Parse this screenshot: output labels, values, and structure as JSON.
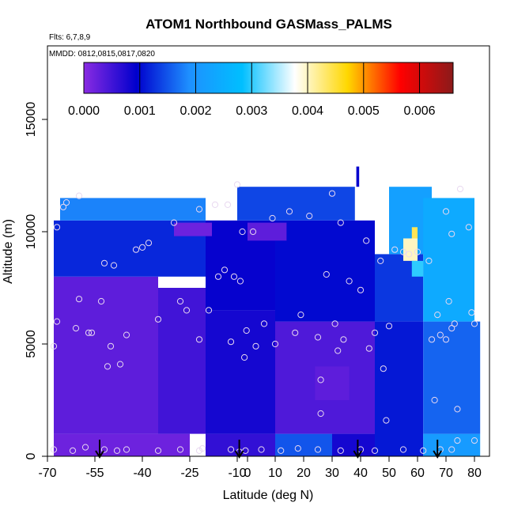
{
  "chart_data": {
    "type": "heatmap",
    "title": "ATOM1 Northbound GASMass_PALMS",
    "flights_label": "Flts: 6,7,8,9",
    "dates_label": "MMDD: 0812,0815,0817,0820",
    "xlabel": "Latitude (deg N)",
    "ylabel": "Altitude (m)",
    "xlim": [
      -70,
      82
    ],
    "ylim": [
      0,
      15000
    ],
    "x_ticks": [
      "-70",
      "-55",
      "-40",
      "-25",
      "-10",
      "0",
      "10",
      "20",
      "30",
      "40",
      "50",
      "60",
      "70",
      "80"
    ],
    "y_ticks": [
      "0",
      "5000",
      "10000",
      "15000"
    ],
    "colorbar": {
      "min": 0,
      "max": 0.0066,
      "ticks": [
        "0.000",
        "0.001",
        "0.002",
        "0.003",
        "0.004",
        "0.005",
        "0.006"
      ],
      "colors": [
        "#8a2be2",
        "#0000cd",
        "#1e90ff",
        "#00bfff",
        "#ffffff",
        "#ffd700",
        "#ff0000",
        "#8b1a1a"
      ]
    },
    "grid": false,
    "legend": "colorbar-top-inside",
    "arrows_lat": [
      -53.5,
      -8,
      39,
      67
    ],
    "field": [
      {
        "lat": [
          -68,
          -25
        ],
        "alt": [
          0,
          1000
        ],
        "value": 0.0002
      },
      {
        "lat": [
          -68,
          -35
        ],
        "alt": [
          1000,
          8000
        ],
        "value": 0.0003
      },
      {
        "lat": [
          -35,
          -20
        ],
        "alt": [
          1000,
          7500
        ],
        "value": 0.0005
      },
      {
        "lat": [
          -68,
          -20
        ],
        "alt": [
          8000,
          10500
        ],
        "value": 0.0012
      },
      {
        "lat": [
          -66,
          -20
        ],
        "alt": [
          10500,
          11500
        ],
        "value": 0.0018
      },
      {
        "lat": [
          -20,
          10
        ],
        "alt": [
          0,
          1000
        ],
        "value": 0.0006
      },
      {
        "lat": [
          -20,
          10
        ],
        "alt": [
          1000,
          6500
        ],
        "value": 0.0008
      },
      {
        "lat": [
          -20,
          10
        ],
        "alt": [
          6500,
          10500
        ],
        "value": 0.0009
      },
      {
        "lat": [
          -10,
          38
        ],
        "alt": [
          10500,
          12000
        ],
        "value": 0.0014
      },
      {
        "lat": [
          10,
          30
        ],
        "alt": [
          0,
          1000
        ],
        "value": 0.0015
      },
      {
        "lat": [
          10,
          45
        ],
        "alt": [
          1000,
          6000
        ],
        "value": 0.0004
      },
      {
        "lat": [
          10,
          45
        ],
        "alt": [
          6000,
          10500
        ],
        "value": 0.001
      },
      {
        "lat": [
          30,
          50
        ],
        "alt": [
          0,
          1000
        ],
        "value": 0.0008
      },
      {
        "lat": [
          45,
          62
        ],
        "alt": [
          0,
          6000
        ],
        "value": 0.0011
      },
      {
        "lat": [
          45,
          62
        ],
        "alt": [
          6000,
          9000
        ],
        "value": 0.0013
      },
      {
        "lat": [
          50,
          65
        ],
        "alt": [
          9000,
          12000
        ],
        "value": 0.0022
      },
      {
        "lat": [
          62,
          82
        ],
        "alt": [
          0,
          1000
        ],
        "value": 0.0021
      },
      {
        "lat": [
          62,
          82
        ],
        "alt": [
          1000,
          6000
        ],
        "value": 0.0016
      },
      {
        "lat": [
          62,
          80
        ],
        "alt": [
          6000,
          11500
        ],
        "value": 0.0024
      },
      {
        "lat": [
          -30,
          -18
        ],
        "alt": [
          9800,
          10400
        ],
        "value": 0.0002
      },
      {
        "lat": [
          0,
          14
        ],
        "alt": [
          9600,
          10400
        ],
        "value": 0.0003
      },
      {
        "lat": [
          24,
          36
        ],
        "alt": [
          2500,
          4000
        ],
        "value": 0.0003
      },
      {
        "lat": [
          55,
          60
        ],
        "alt": [
          8700,
          9700
        ],
        "value": 0.004
      },
      {
        "lat": [
          58,
          60
        ],
        "alt": [
          9700,
          10200
        ],
        "value": 0.0044
      },
      {
        "lat": [
          58,
          62
        ],
        "alt": [
          8000,
          8700
        ],
        "value": 0.003
      },
      {
        "lat": [
          38.5,
          39.5
        ],
        "alt": [
          12000,
          12900
        ],
        "value": 0.0009
      }
    ],
    "points": [
      {
        "lat": -67,
        "alt": 10200
      },
      {
        "lat": -65,
        "alt": 11100
      },
      {
        "lat": -64,
        "alt": 11300
      },
      {
        "lat": -60,
        "alt": 11600
      },
      {
        "lat": -67,
        "alt": 6000
      },
      {
        "lat": -68,
        "alt": 4900
      },
      {
        "lat": -60,
        "alt": 7000
      },
      {
        "lat": -61,
        "alt": 5700
      },
      {
        "lat": -57,
        "alt": 5500
      },
      {
        "lat": -56,
        "alt": 5500
      },
      {
        "lat": -53,
        "alt": 6900
      },
      {
        "lat": -52,
        "alt": 8600
      },
      {
        "lat": -49,
        "alt": 8500
      },
      {
        "lat": -51,
        "alt": 4000
      },
      {
        "lat": -50,
        "alt": 4900
      },
      {
        "lat": -47,
        "alt": 4100
      },
      {
        "lat": -45,
        "alt": 5400
      },
      {
        "lat": -42,
        "alt": 9200
      },
      {
        "lat": -40,
        "alt": 9300
      },
      {
        "lat": -38,
        "alt": 9500
      },
      {
        "lat": -35,
        "alt": 6100
      },
      {
        "lat": -30,
        "alt": 10400
      },
      {
        "lat": -28,
        "alt": 6900
      },
      {
        "lat": -26,
        "alt": 6500
      },
      {
        "lat": -22,
        "alt": 11000
      },
      {
        "lat": -22,
        "alt": 5200
      },
      {
        "lat": -19,
        "alt": 6500
      },
      {
        "lat": -17,
        "alt": 11200
      },
      {
        "lat": -16,
        "alt": 8000
      },
      {
        "lat": -14,
        "alt": 8300
      },
      {
        "lat": -13,
        "alt": 11200
      },
      {
        "lat": -10,
        "alt": 12100
      },
      {
        "lat": -12,
        "alt": 5100
      },
      {
        "lat": -11,
        "alt": 8000
      },
      {
        "lat": -7,
        "alt": 7800
      },
      {
        "lat": -5,
        "alt": 10000
      },
      {
        "lat": -3,
        "alt": 4400
      },
      {
        "lat": -1,
        "alt": 5600
      },
      {
        "lat": 2,
        "alt": 10000
      },
      {
        "lat": 3,
        "alt": 4900
      },
      {
        "lat": 6,
        "alt": 5900
      },
      {
        "lat": 9,
        "alt": 10600
      },
      {
        "lat": 10,
        "alt": 5000
      },
      {
        "lat": 15,
        "alt": 10900
      },
      {
        "lat": 17,
        "alt": 5500
      },
      {
        "lat": 19,
        "alt": 6300
      },
      {
        "lat": 22,
        "alt": 10700
      },
      {
        "lat": 25,
        "alt": 5300
      },
      {
        "lat": 26,
        "alt": 1900
      },
      {
        "lat": 26,
        "alt": 3400
      },
      {
        "lat": 28,
        "alt": 8100
      },
      {
        "lat": 30,
        "alt": 11700
      },
      {
        "lat": 31,
        "alt": 5900
      },
      {
        "lat": 32,
        "alt": 4700
      },
      {
        "lat": 33,
        "alt": 10400
      },
      {
        "lat": 34,
        "alt": 5200
      },
      {
        "lat": 36,
        "alt": 7800
      },
      {
        "lat": 40,
        "alt": 7400
      },
      {
        "lat": 42,
        "alt": 9600
      },
      {
        "lat": 43,
        "alt": 4800
      },
      {
        "lat": 45,
        "alt": 5500
      },
      {
        "lat": 47,
        "alt": 8700
      },
      {
        "lat": 48,
        "alt": 3900
      },
      {
        "lat": 49,
        "alt": 1600
      },
      {
        "lat": 50,
        "alt": 5800
      },
      {
        "lat": 52,
        "alt": 9200
      },
      {
        "lat": 55,
        "alt": 9100
      },
      {
        "lat": 57,
        "alt": 9000
      },
      {
        "lat": 60,
        "alt": 9100
      },
      {
        "lat": 64,
        "alt": 8700
      },
      {
        "lat": 65,
        "alt": 5200
      },
      {
        "lat": 66,
        "alt": 2500
      },
      {
        "lat": 67,
        "alt": 6300
      },
      {
        "lat": 68,
        "alt": 5400
      },
      {
        "lat": 70,
        "alt": 5200
      },
      {
        "lat": 70,
        "alt": 10900
      },
      {
        "lat": 71,
        "alt": 6900
      },
      {
        "lat": 72,
        "alt": 9900
      },
      {
        "lat": 72,
        "alt": 5700
      },
      {
        "lat": 73,
        "alt": 5900
      },
      {
        "lat": 74,
        "alt": 2100
      },
      {
        "lat": 75,
        "alt": 11900
      },
      {
        "lat": 78,
        "alt": 10200
      },
      {
        "lat": 79,
        "alt": 6400
      },
      {
        "lat": 80,
        "alt": 5900
      },
      {
        "lat": 80,
        "alt": 700
      },
      {
        "lat": 74,
        "alt": 700
      },
      {
        "lat": 72,
        "alt": 300
      },
      {
        "lat": -68,
        "alt": 300
      },
      {
        "lat": -62,
        "alt": 250
      },
      {
        "lat": -58,
        "alt": 400
      },
      {
        "lat": -52,
        "alt": 300
      },
      {
        "lat": -48,
        "alt": 250
      },
      {
        "lat": -45,
        "alt": 300
      },
      {
        "lat": -35,
        "alt": 250
      },
      {
        "lat": -28,
        "alt": 300
      },
      {
        "lat": -22,
        "alt": 250
      },
      {
        "lat": -21,
        "alt": 350
      },
      {
        "lat": -12,
        "alt": 300
      },
      {
        "lat": -8,
        "alt": 200
      },
      {
        "lat": -2,
        "alt": 250
      },
      {
        "lat": 5,
        "alt": 300
      },
      {
        "lat": 12,
        "alt": 250
      },
      {
        "lat": 18,
        "alt": 350
      },
      {
        "lat": 25,
        "alt": 300
      },
      {
        "lat": 33,
        "alt": 250
      },
      {
        "lat": 40,
        "alt": 300
      },
      {
        "lat": 45,
        "alt": 250
      },
      {
        "lat": 55,
        "alt": 300
      },
      {
        "lat": 62,
        "alt": 250
      },
      {
        "lat": 68,
        "alt": 300
      }
    ]
  }
}
